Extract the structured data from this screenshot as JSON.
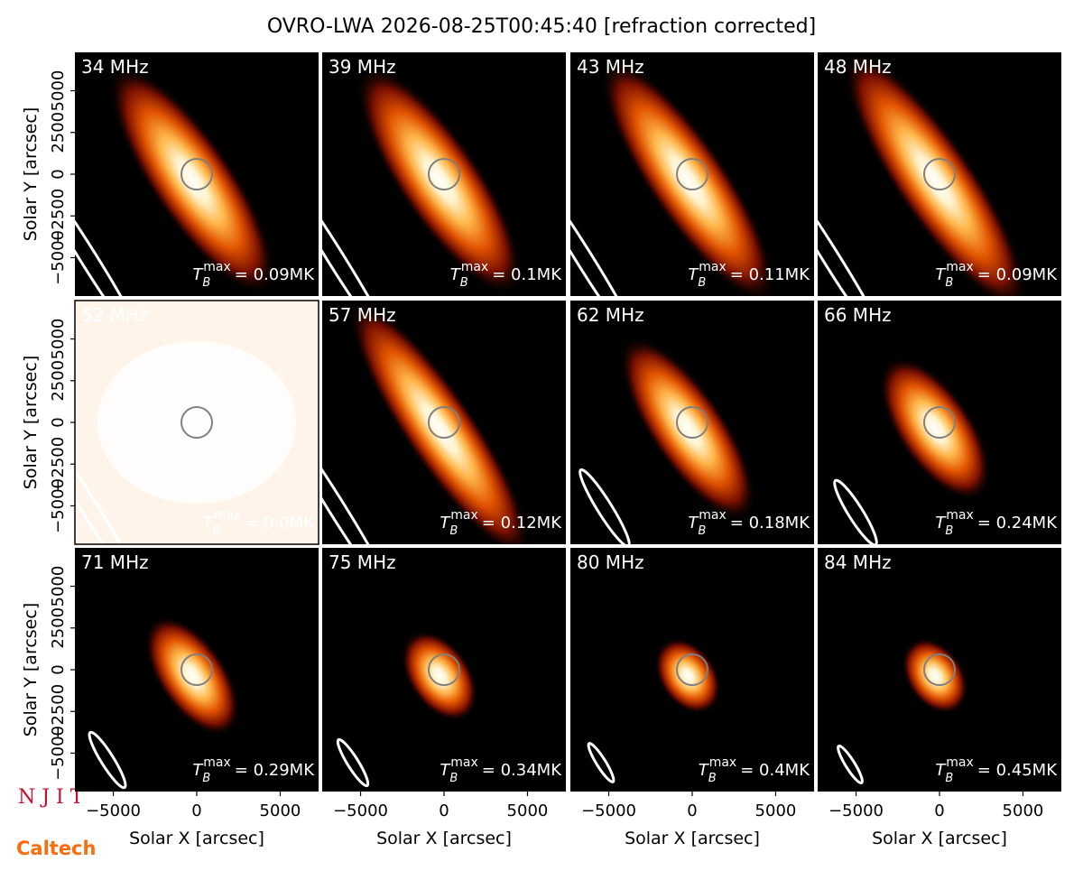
{
  "chart_data": {
    "type": "image_grid",
    "title": "OVRO-LWA 2026-08-25T00:45:40 [refraction corrected]",
    "xlabel": "Solar X [arcsec]",
    "ylabel": "Solar Y [arcsec]",
    "xlim": [
      -7300,
      7300
    ],
    "ylim": [
      -7300,
      7300
    ],
    "xticks": [
      {
        "value": -5000,
        "label": "−5000"
      },
      0,
      5000
    ],
    "yticks": [
      {
        "value": -5000,
        "label": "−5000"
      },
      {
        "value": -2500,
        "label": "−2500"
      },
      0,
      2500,
      5000
    ],
    "tb_symbol": "T",
    "tb_sub": "B",
    "tb_sup": "max",
    "panels": [
      {
        "label": "34 MHz",
        "tmax": "= 0.09MK"
      },
      {
        "label": "39 MHz",
        "tmax": "= 0.1MK"
      },
      {
        "label": "43 MHz",
        "tmax": "= 0.11MK"
      },
      {
        "label": "48 MHz",
        "tmax": "= 0.09MK"
      },
      {
        "label": "52 MHz",
        "tmax": "= 0.0MK"
      },
      {
        "label": "57 MHz",
        "tmax": "= 0.12MK"
      },
      {
        "label": "62 MHz",
        "tmax": "= 0.18MK"
      },
      {
        "label": "66 MHz",
        "tmax": "= 0.24MK"
      },
      {
        "label": "71 MHz",
        "tmax": "= 0.29MK"
      },
      {
        "label": "75 MHz",
        "tmax": "= 0.34MK"
      },
      {
        "label": "80 MHz",
        "tmax": "= 0.4MK"
      },
      {
        "label": "84 MHz",
        "tmax": "= 0.45MK"
      }
    ]
  },
  "logos": {
    "njit": "N J I T",
    "caltech": "Caltech"
  }
}
